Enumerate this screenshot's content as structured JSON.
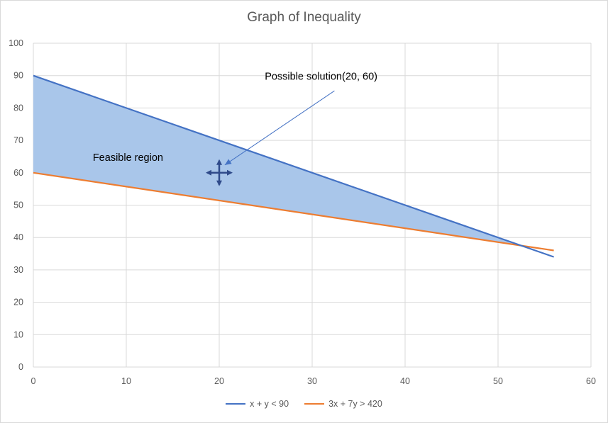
{
  "chart_data": {
    "type": "line",
    "title": "Graph of Inequality",
    "xlabel": "",
    "ylabel": "",
    "xlim": [
      0,
      60
    ],
    "ylim": [
      0,
      100
    ],
    "xticks": [
      0,
      10,
      20,
      30,
      40,
      50,
      60
    ],
    "yticks": [
      0,
      10,
      20,
      30,
      40,
      50,
      60,
      70,
      80,
      90,
      100
    ],
    "grid": true,
    "legend_position": "bottom",
    "series": [
      {
        "name": "x + y < 90",
        "color": "#4472C4",
        "x": [
          0,
          56
        ],
        "y": [
          90,
          34
        ]
      },
      {
        "name": "3x + 7y > 420",
        "color": "#ED7D31",
        "x": [
          0,
          56
        ],
        "y": [
          60,
          36
        ]
      }
    ],
    "shaded_region": {
      "label": "Feasible region",
      "fill": "#A9C6EA"
    },
    "annotations": [
      {
        "text": "Feasible region"
      },
      {
        "text": "Possible solution(20, 60)",
        "point": [
          20,
          60
        ]
      }
    ],
    "marker_point": {
      "x": 20,
      "y": 60
    }
  },
  "colors": {
    "grid": "#d9d9d9",
    "axis_text": "#595959",
    "arrow": "#4472C4",
    "marker": "#2F4A8A"
  }
}
